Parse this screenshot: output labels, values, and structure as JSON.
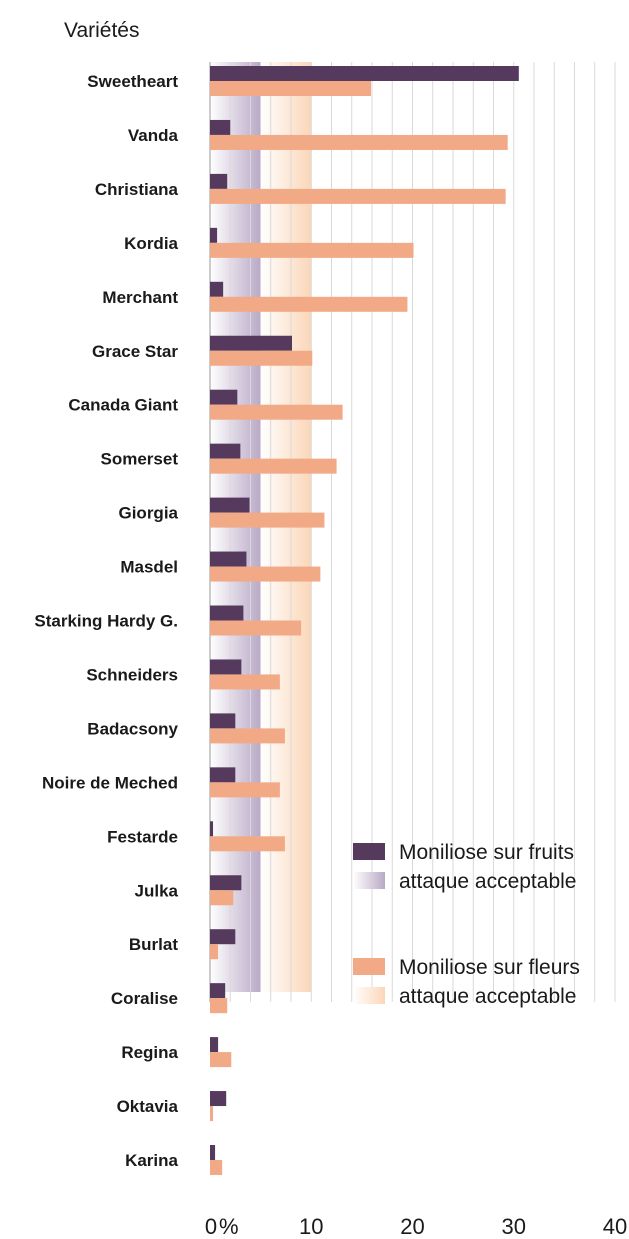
{
  "chart_data": {
    "type": "bar",
    "orientation": "horizontal",
    "ylabel": "Variétés",
    "x_ticks": [
      "0",
      "10",
      "20",
      "30",
      "40"
    ],
    "x_unit": "%",
    "xlim": [
      0,
      40
    ],
    "grid": true,
    "categories": [
      "Sweetheart",
      "Vanda",
      "Christiana",
      "Kordia",
      "Merchant",
      "Grace Star",
      "Canada Giant",
      "Somerset",
      "Giorgia",
      "Masdel",
      "Starking Hardy G.",
      "Schneiders",
      "Badacsony",
      "Noire de Meched",
      "Festarde",
      "Julka",
      "Burlat",
      "Coralise",
      "Regina",
      "Oktavia",
      "Karina"
    ],
    "series": [
      {
        "name": "Moniliose sur fruits",
        "color": "#563a5e",
        "values": [
          30.5,
          2.0,
          1.7,
          0.7,
          1.3,
          8.1,
          2.7,
          3.0,
          3.9,
          3.6,
          3.3,
          3.1,
          2.5,
          2.5,
          0.3,
          3.1,
          2.5,
          1.5,
          0.8,
          1.6,
          0.5
        ]
      },
      {
        "name": "Moniliose sur fleurs",
        "color": "#f2a986",
        "values": [
          15.9,
          29.4,
          29.2,
          20.1,
          19.5,
          10.1,
          13.1,
          12.5,
          11.3,
          10.9,
          9.0,
          6.9,
          7.4,
          6.9,
          7.4,
          2.3,
          0.8,
          1.7,
          2.1,
          0.3,
          1.2
        ]
      }
    ],
    "acceptable_bands": [
      {
        "name": "attaque acceptable",
        "series": "Moniliose sur fruits",
        "range": [
          0,
          5
        ],
        "color": "#b9a9c6"
      },
      {
        "name": "attaque acceptable",
        "series": "Moniliose sur fleurs",
        "range": [
          5,
          10
        ],
        "color": "#fbd6b8"
      }
    ],
    "legend": {
      "placement": "bottom-right",
      "items": [
        {
          "label": "Moniliose sur fruits",
          "kind": "bar",
          "color": "#563a5e"
        },
        {
          "label": "attaque acceptable",
          "kind": "band",
          "color": "#b9a9c6"
        },
        {
          "label": "Moniliose sur fleurs",
          "kind": "bar",
          "color": "#f2a986"
        },
        {
          "label": "attaque acceptable",
          "kind": "band",
          "color": "#fbd6b8"
        }
      ]
    }
  }
}
